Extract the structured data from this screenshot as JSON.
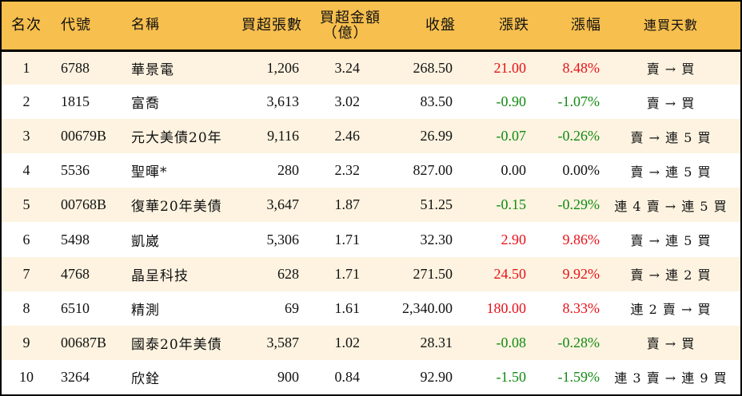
{
  "table": {
    "headers": {
      "rank": "名次",
      "code": "代號",
      "name": "名稱",
      "net_buy_lots": "買超張數",
      "net_buy_amount_line1": "買超金額",
      "net_buy_amount_line2": "（億）",
      "close": "收盤",
      "change": "漲跌",
      "change_pct": "漲幅",
      "streak": "連買天數"
    },
    "colors": {
      "header_bg": "#f7bf4e",
      "row_alt_bg": "#fdf3e0",
      "up": "#e8111a",
      "down": "#118a11"
    },
    "rows": [
      {
        "rank": "1",
        "code": "6788",
        "name": "華景電",
        "lots": "1,206",
        "amount": "3.24",
        "close": "268.50",
        "change": "21.00",
        "pct": "8.48%",
        "dir": "up",
        "streak": "賣 → 買"
      },
      {
        "rank": "2",
        "code": "1815",
        "name": "富喬",
        "lots": "3,613",
        "amount": "3.02",
        "close": "83.50",
        "change": "-0.90",
        "pct": "-1.07%",
        "dir": "down",
        "streak": "賣 → 買"
      },
      {
        "rank": "3",
        "code": "00679B",
        "name": "元大美債20年",
        "lots": "9,116",
        "amount": "2.46",
        "close": "26.99",
        "change": "-0.07",
        "pct": "-0.26%",
        "dir": "down",
        "streak": "賣 → 連 5 買"
      },
      {
        "rank": "4",
        "code": "5536",
        "name": "聖暉*",
        "lots": "280",
        "amount": "2.32",
        "close": "827.00",
        "change": "0.00",
        "pct": "0.00%",
        "dir": "flat",
        "streak": "賣 → 連 5 買"
      },
      {
        "rank": "5",
        "code": "00768B",
        "name": "復華20年美債",
        "lots": "3,647",
        "amount": "1.87",
        "close": "51.25",
        "change": "-0.15",
        "pct": "-0.29%",
        "dir": "down",
        "streak": "連 4 賣 → 連 5 買"
      },
      {
        "rank": "6",
        "code": "5498",
        "name": "凱崴",
        "lots": "5,306",
        "amount": "1.71",
        "close": "32.30",
        "change": "2.90",
        "pct": "9.86%",
        "dir": "up",
        "streak": "賣 → 連 5 買"
      },
      {
        "rank": "7",
        "code": "4768",
        "name": "晶呈科技",
        "lots": "628",
        "amount": "1.71",
        "close": "271.50",
        "change": "24.50",
        "pct": "9.92%",
        "dir": "up",
        "streak": "賣 → 連 2 買"
      },
      {
        "rank": "8",
        "code": "6510",
        "name": "精測",
        "lots": "69",
        "amount": "1.61",
        "close": "2,340.00",
        "change": "180.00",
        "pct": "8.33%",
        "dir": "up",
        "streak": "連 2 賣 → 買"
      },
      {
        "rank": "9",
        "code": "00687B",
        "name": "國泰20年美債",
        "lots": "3,587",
        "amount": "1.02",
        "close": "28.31",
        "change": "-0.08",
        "pct": "-0.28%",
        "dir": "down",
        "streak": "賣 → 買"
      },
      {
        "rank": "10",
        "code": "3264",
        "name": "欣銓",
        "lots": "900",
        "amount": "0.84",
        "close": "92.90",
        "change": "-1.50",
        "pct": "-1.59%",
        "dir": "down",
        "streak": "連 3 賣 → 連 9 買"
      }
    ]
  }
}
